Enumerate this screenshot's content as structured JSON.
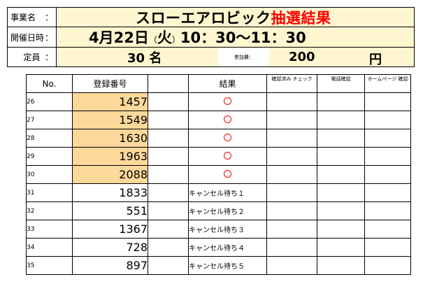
{
  "header": {
    "event_label": "事業名",
    "datetime_label": "開催日時",
    "capacity_label": "定員",
    "colon": "：",
    "title_main": "スローエアロビック",
    "title_red": "抽選結果",
    "date": "4月22日",
    "weekday_open": "（",
    "weekday": "火",
    "weekday_close": "）",
    "time": "10：30～11：30",
    "capacity": "30 名",
    "fee_label": "参加費：",
    "fee": "200",
    "fee_unit": "円"
  },
  "table": {
    "headers": {
      "no": "No.",
      "number": "登録番号",
      "result": "結果",
      "checked": "確認済み チェック",
      "phone": "電話確認",
      "homepage": "ホームページ 確認"
    },
    "rows": [
      {
        "no": "26",
        "number": "1457",
        "result": "○",
        "win": true
      },
      {
        "no": "27",
        "number": "1549",
        "result": "○",
        "win": true
      },
      {
        "no": "28",
        "number": "1630",
        "result": "○",
        "win": true
      },
      {
        "no": "29",
        "number": "1963",
        "result": "○",
        "win": true
      },
      {
        "no": "30",
        "number": "2088",
        "result": "○",
        "win": true
      },
      {
        "no": "31",
        "number": "1833",
        "result": "キャンセル待ち１",
        "win": false
      },
      {
        "no": "32",
        "number": "551",
        "result": "キャンセル待ち２",
        "win": false
      },
      {
        "no": "33",
        "number": "1367",
        "result": "キャンセル待ち３",
        "win": false
      },
      {
        "no": "34",
        "number": "728",
        "result": "キャンセル待ち４",
        "win": false
      },
      {
        "no": "35",
        "number": "897",
        "result": "キャンセル待ち５",
        "win": false
      }
    ]
  },
  "colors": {
    "header_fill": "#fdf6cf",
    "winner_fill": "#fcd89a",
    "accent_red": "#ff0000"
  }
}
